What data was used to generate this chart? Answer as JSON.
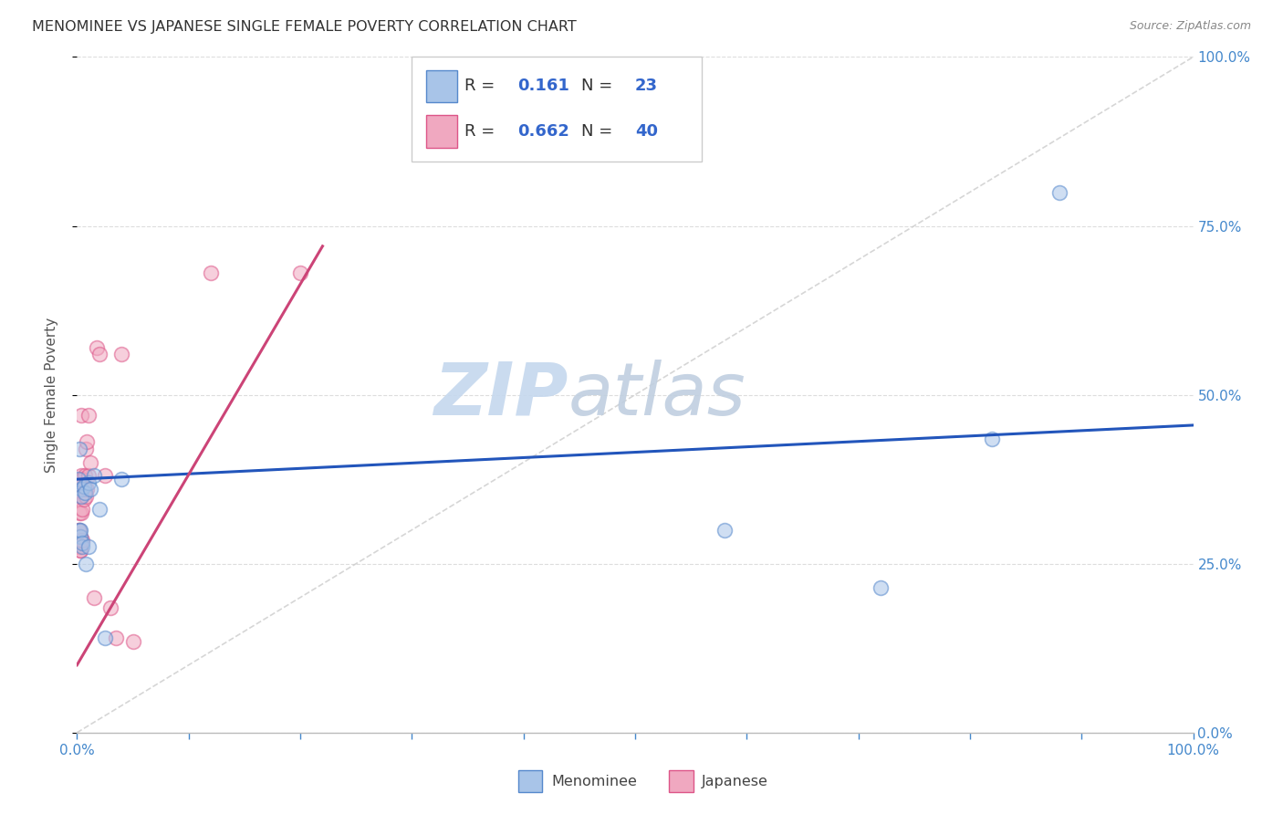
{
  "title": "MENOMINEE VS JAPANESE SINGLE FEMALE POVERTY CORRELATION CHART",
  "source": "Source: ZipAtlas.com",
  "ylabel": "Single Female Poverty",
  "xlim": [
    0,
    1
  ],
  "ylim": [
    0,
    1
  ],
  "ytick_values": [
    0.0,
    0.25,
    0.5,
    0.75,
    1.0
  ],
  "menominee_color": "#a8c4e8",
  "japanese_color": "#f0a8c0",
  "menominee_edge_color": "#5588cc",
  "japanese_edge_color": "#dd5588",
  "trend_menominee_color": "#2255bb",
  "trend_japanese_color": "#cc4477",
  "reference_line_color": "#cccccc",
  "legend_R_menominee": "0.161",
  "legend_N_menominee": "23",
  "legend_R_japanese": "0.662",
  "legend_N_japanese": "40",
  "legend_label_menominee": "Menominee",
  "legend_label_japanese": "Japanese",
  "watermark_zip": "ZIP",
  "watermark_atlas": "atlas",
  "watermark_color_zip": "#c5d8ee",
  "watermark_color_atlas": "#c0cfe0",
  "menominee_x": [
    0.001,
    0.002,
    0.002,
    0.003,
    0.003,
    0.004,
    0.004,
    0.005,
    0.005,
    0.006,
    0.007,
    0.008,
    0.01,
    0.01,
    0.012,
    0.015,
    0.02,
    0.025,
    0.04,
    0.58,
    0.72,
    0.82,
    0.88
  ],
  "menominee_y": [
    0.375,
    0.42,
    0.3,
    0.29,
    0.3,
    0.36,
    0.35,
    0.275,
    0.28,
    0.365,
    0.355,
    0.25,
    0.37,
    0.275,
    0.36,
    0.38,
    0.33,
    0.14,
    0.375,
    0.3,
    0.215,
    0.435,
    0.8
  ],
  "japanese_x": [
    0.001,
    0.001,
    0.001,
    0.002,
    0.002,
    0.002,
    0.002,
    0.003,
    0.003,
    0.003,
    0.003,
    0.003,
    0.003,
    0.004,
    0.004,
    0.004,
    0.004,
    0.005,
    0.005,
    0.005,
    0.006,
    0.007,
    0.007,
    0.008,
    0.008,
    0.009,
    0.009,
    0.01,
    0.01,
    0.012,
    0.015,
    0.018,
    0.02,
    0.025,
    0.03,
    0.035,
    0.04,
    0.05,
    0.12,
    0.2
  ],
  "japanese_y": [
    0.275,
    0.285,
    0.3,
    0.275,
    0.285,
    0.3,
    0.325,
    0.275,
    0.27,
    0.27,
    0.285,
    0.29,
    0.375,
    0.325,
    0.35,
    0.38,
    0.47,
    0.285,
    0.33,
    0.375,
    0.345,
    0.36,
    0.38,
    0.42,
    0.35,
    0.36,
    0.43,
    0.47,
    0.38,
    0.4,
    0.2,
    0.57,
    0.56,
    0.38,
    0.185,
    0.14,
    0.56,
    0.135,
    0.68,
    0.68
  ],
  "menominee_trend_x": [
    0.0,
    1.0
  ],
  "menominee_trend_y": [
    0.375,
    0.455
  ],
  "japanese_trend_x": [
    0.0,
    0.22
  ],
  "japanese_trend_y": [
    0.1,
    0.72
  ],
  "background_color": "#ffffff",
  "grid_color": "#dddddd",
  "marker_size": 130,
  "marker_alpha": 0.55,
  "title_fontsize": 11.5,
  "axis_label_fontsize": 11,
  "legend_fontsize": 13,
  "tick_fontsize": 11,
  "tick_color": "#4488cc",
  "right_tick_color": "#4488cc"
}
